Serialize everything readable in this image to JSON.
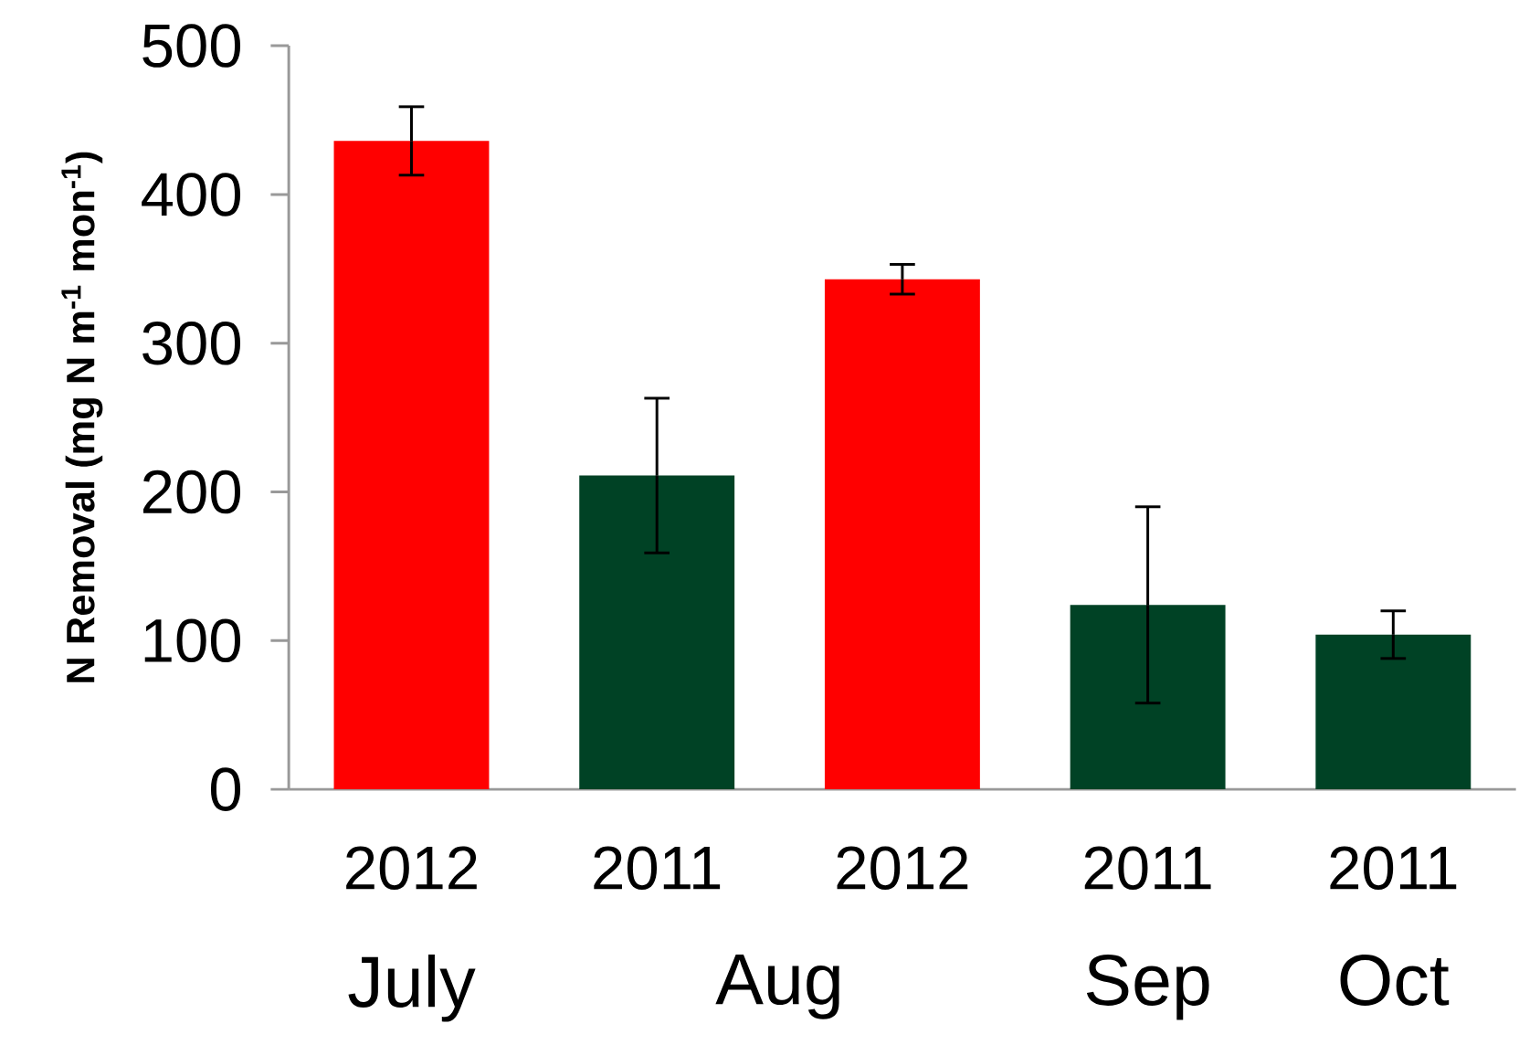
{
  "chart_data": {
    "type": "bar",
    "ylabel": "N Removal (mg N m$^{-1}$ mon$^{-1}$)",
    "categories": [
      "2012",
      "2011",
      "2012",
      "2011",
      "2011"
    ],
    "values": [
      436,
      211,
      343,
      124,
      104
    ],
    "errors": [
      23,
      52,
      10,
      66,
      16
    ],
    "colors": [
      "#ff0000",
      "#004225",
      "#ff0000",
      "#004225",
      "#004225"
    ],
    "ylim": [
      0,
      500
    ],
    "yticks": [
      0,
      100,
      200,
      300,
      400,
      500
    ],
    "annotations": [
      "July",
      "Aug",
      "Sep",
      "Oct"
    ],
    "grid": false
  }
}
